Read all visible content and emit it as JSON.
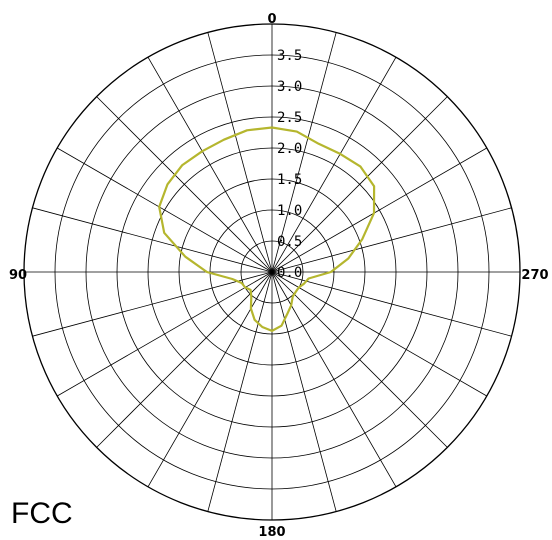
{
  "chart_data": {
    "type": "polar-line",
    "angle_labels": [
      "0",
      "90",
      "180",
      "270"
    ],
    "radial_ticks": [
      "0.0",
      "0.5",
      "1.0",
      "1.5",
      "2.0",
      "2.5",
      "3.0",
      "3.5"
    ],
    "r_max": 4.0,
    "grid": true,
    "colors": {
      "series": "#b5b62e",
      "grid": "#000000"
    },
    "series": [
      {
        "points": [
          [
            0,
            2.33
          ],
          [
            10,
            2.32
          ],
          [
            20,
            2.27
          ],
          [
            30,
            2.25
          ],
          [
            40,
            2.25
          ],
          [
            50,
            2.2
          ],
          [
            60,
            2.1
          ],
          [
            70,
            1.85
          ],
          [
            80,
            1.42
          ],
          [
            90,
            1.05
          ],
          [
            100,
            0.65
          ],
          [
            110,
            0.52
          ],
          [
            120,
            0.5
          ],
          [
            130,
            0.45
          ],
          [
            140,
            0.52
          ],
          [
            150,
            0.68
          ],
          [
            160,
            0.82
          ],
          [
            170,
            0.9
          ],
          [
            180,
            0.95
          ],
          [
            190,
            0.88
          ],
          [
            200,
            0.72
          ],
          [
            210,
            0.62
          ],
          [
            220,
            0.52
          ],
          [
            230,
            0.5
          ],
          [
            240,
            0.5
          ],
          [
            250,
            0.55
          ],
          [
            260,
            0.6
          ],
          [
            270,
            0.95
          ],
          [
            280,
            1.25
          ],
          [
            290,
            1.55
          ],
          [
            300,
            1.9
          ],
          [
            310,
            2.15
          ],
          [
            320,
            2.22
          ],
          [
            330,
            2.2
          ],
          [
            340,
            2.2
          ],
          [
            350,
            2.3
          ],
          [
            360,
            2.33
          ]
        ]
      }
    ],
    "corner_text": "FCC"
  }
}
